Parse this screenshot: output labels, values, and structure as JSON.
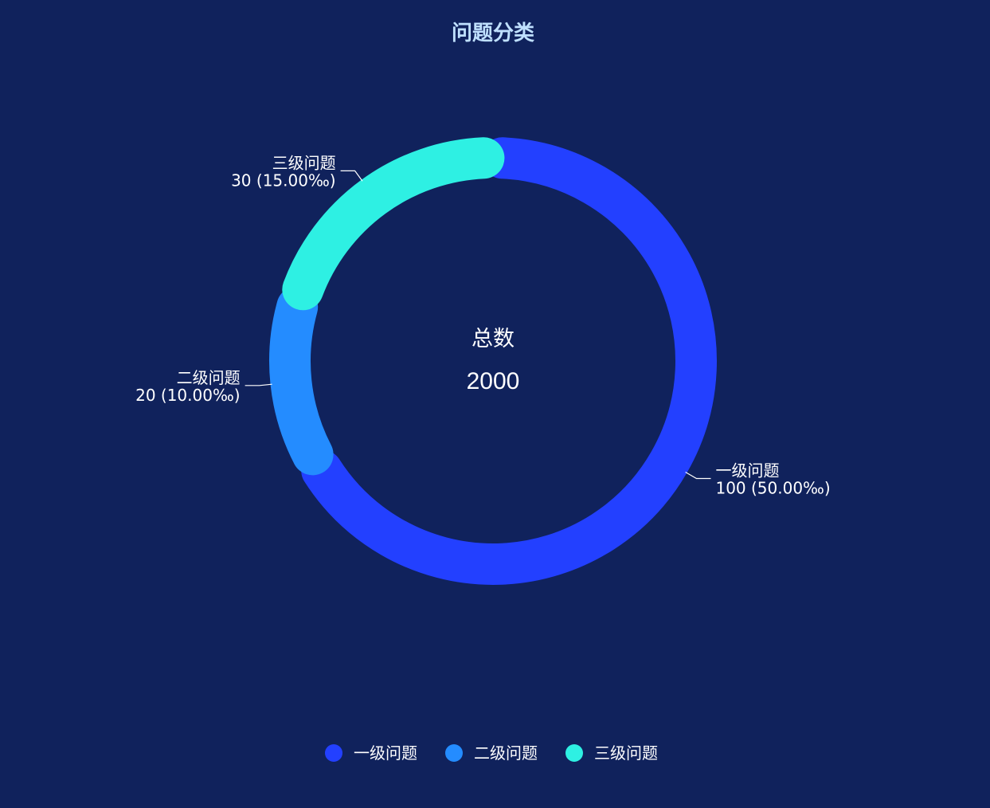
{
  "chart_data": {
    "type": "pie",
    "variant": "donut",
    "title": "问题分类",
    "center": {
      "label": "总数",
      "value": "2000"
    },
    "slices": [
      {
        "name": "一级问题",
        "value": 100,
        "percent_text": "50.00‰",
        "label_line2": "100 (50.00‰)",
        "color": "#2340ff"
      },
      {
        "name": "二级问题",
        "value": 20,
        "percent_text": "10.00‰",
        "label_line2": "20 (10.00‰)",
        "color": "#248cff"
      },
      {
        "name": "三级问题",
        "value": 30,
        "percent_text": "15.00‰",
        "label_line2": "30 (15.00‰)",
        "color": "#2ef0e3"
      }
    ],
    "legend": {
      "position": "bottom-center",
      "items": [
        "一级问题",
        "二级问题",
        "三级问题"
      ]
    }
  },
  "colors": {
    "background": "#10225c",
    "title": "#bfe0ff",
    "text": "#ffffff"
  }
}
